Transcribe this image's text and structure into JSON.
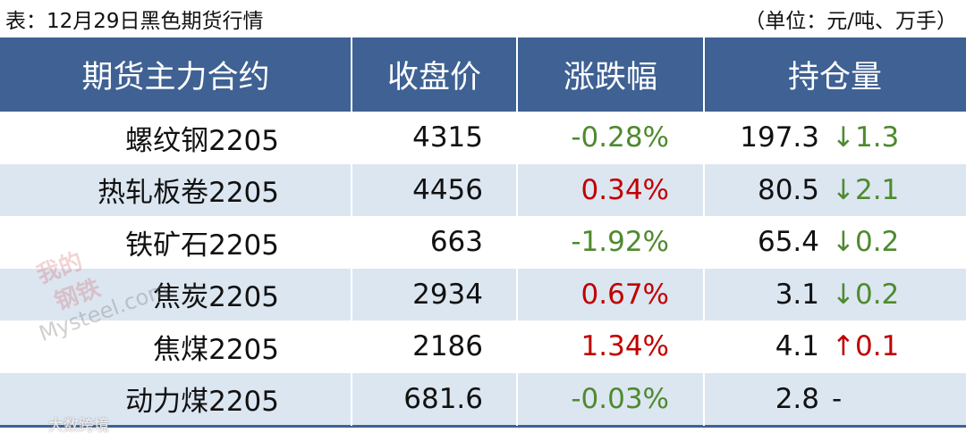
{
  "caption": {
    "title": "表：12月29日黑色期货行情",
    "unit": "（单位：元/吨、万手）"
  },
  "table": {
    "header": [
      "期货主力合约",
      "收盘价",
      "涨跌幅",
      "持仓量"
    ],
    "rows": [
      [
        "螺纹钢2205",
        "4315",
        "-0.28%",
        "197.3",
        "↓1.3"
      ],
      [
        "热轧板卷2205",
        "4456",
        "0.34%",
        "80.5",
        "↓2.1"
      ],
      [
        "铁矿石2205",
        "663",
        "-1.92%",
        "65.4",
        "↓0.2"
      ],
      [
        "焦炭2205",
        "2934",
        "0.67%",
        "3.1",
        "↓0.2"
      ],
      [
        "焦煤2205",
        "2186",
        "1.34%",
        "4.1",
        "↑0.1"
      ],
      [
        "动力煤2205",
        "681.6",
        "-0.03%",
        "2.8",
        "-"
      ]
    ]
  },
  "watermarks": [
    "我的",
    "钢铁",
    "Mysteel.com",
    "大数跨境"
  ]
}
